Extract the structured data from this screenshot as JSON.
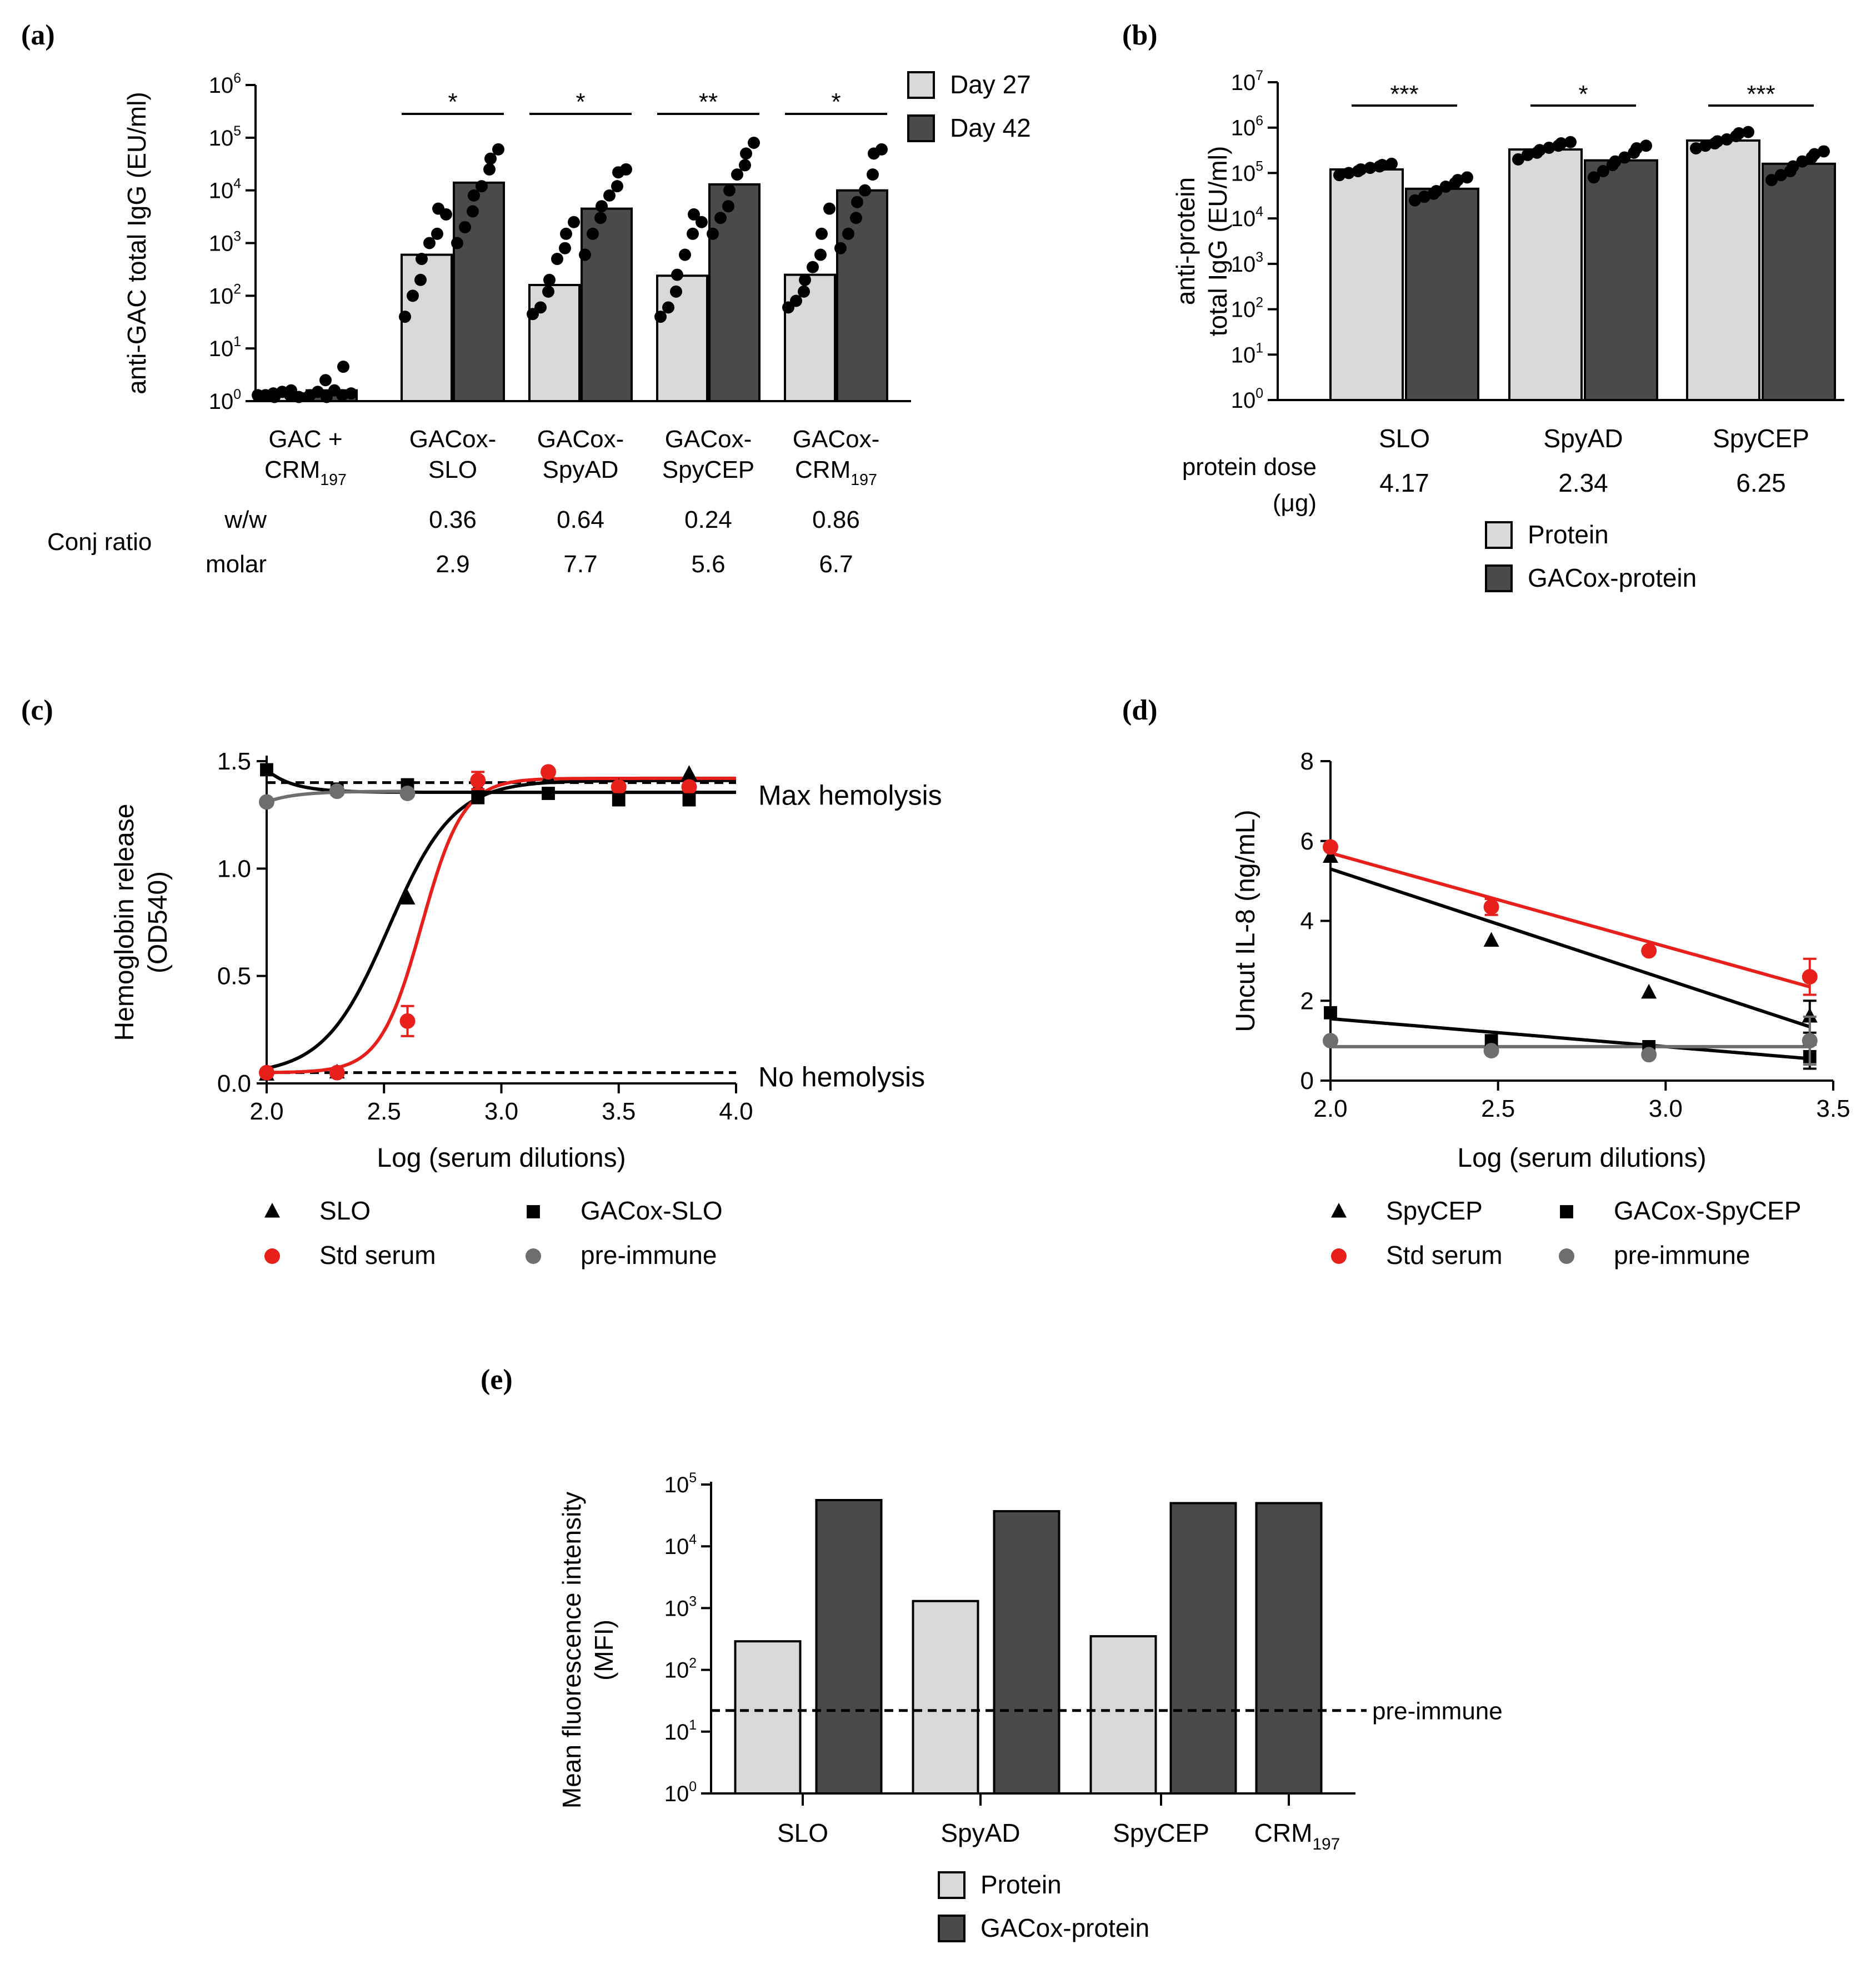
{
  "colors": {
    "light_bar": "#d9d9d9",
    "dark_bar": "#4a4a4a",
    "point": "#000000",
    "red": "#e8201c",
    "gray_series": "#6e6e6e",
    "axis": "#000000"
  },
  "chart_data": [
    {
      "panel": "(a)",
      "type": "bar",
      "title": "",
      "ylabel": "anti-GAC total IgG (EU/ml)",
      "yscale": "log",
      "ylim": [
        1,
        1000000
      ],
      "ytick_values": [
        1,
        10,
        100,
        1000,
        10000,
        100000,
        1000000
      ],
      "ytick_labels": [
        {
          "base": "10",
          "exp": "0"
        },
        {
          "base": "10",
          "exp": "1"
        },
        {
          "base": "10",
          "exp": "2"
        },
        {
          "base": "10",
          "exp": "3"
        },
        {
          "base": "10",
          "exp": "4"
        },
        {
          "base": "10",
          "exp": "5"
        },
        {
          "base": "10",
          "exp": "6"
        }
      ],
      "categories": [
        {
          "line1": "GAC +",
          "line2": "CRM",
          "sub": "197"
        },
        {
          "line1": "GACox-",
          "line2": "SLO",
          "sub": ""
        },
        {
          "line1": "GACox-",
          "line2": "SpyAD",
          "sub": ""
        },
        {
          "line1": "GACox-",
          "line2": "SpyCEP",
          "sub": ""
        },
        {
          "line1": "GACox-",
          "line2": "CRM",
          "sub": "197"
        }
      ],
      "series": [
        {
          "name": "Day 27",
          "color_key": "light_bar",
          "values": [
            1.4,
            600,
            160,
            240,
            250
          ],
          "points": [
            [
              1.3,
              1.3,
              1.4,
              1.2,
              1.5,
              1.3,
              1.6,
              1.2
            ],
            [
              40,
              100,
              200,
              500,
              1000,
              1500,
              4500,
              3500
            ],
            [
              45,
              60,
              120,
              200,
              500,
              800,
              1500,
              2500
            ],
            [
              40,
              60,
              120,
              250,
              600,
              1500,
              3500,
              2500
            ],
            [
              60,
              80,
              120,
              200,
              350,
              600,
              1500,
              4500
            ]
          ]
        },
        {
          "name": "Day 42",
          "color_key": "dark_bar",
          "values": [
            1.6,
            14000,
            4500,
            13000,
            10000
          ],
          "points": [
            [
              1.3,
              1.5,
              2.5,
              1.2,
              1.6,
              1.3,
              4.5,
              1.4
            ],
            [
              1000,
              2000,
              4000,
              8000,
              12000,
              25000,
              40000,
              60000
            ],
            [
              600,
              1500,
              3000,
              5000,
              8000,
              12000,
              22000,
              25000
            ],
            [
              1500,
              3000,
              5000,
              10000,
              20000,
              30000,
              50000,
              80000
            ],
            [
              800,
              1500,
              3000,
              6000,
              10000,
              20000,
              50000,
              60000
            ]
          ]
        }
      ],
      "significance": [
        {
          "group": 1,
          "label": "*"
        },
        {
          "group": 2,
          "label": "*"
        },
        {
          "group": 3,
          "label": "**"
        },
        {
          "group": 4,
          "label": "*"
        }
      ],
      "legend": {
        "placement": "top-right",
        "entries": [
          "Day 27",
          "Day 42"
        ]
      },
      "conj_ratio": {
        "label": "Conj ratio",
        "rows": [
          {
            "label": "w/w",
            "values": [
              "",
              "0.36",
              "0.64",
              "0.24",
              "0.86"
            ]
          },
          {
            "label": "molar",
            "values": [
              "",
              "2.9",
              "7.7",
              "5.6",
              "6.7"
            ]
          }
        ]
      }
    },
    {
      "panel": "(b)",
      "type": "bar",
      "title": "",
      "ylabel_lines": [
        "anti-protein",
        "total IgG (EU/ml)"
      ],
      "yscale": "log",
      "ylim": [
        1,
        10000000
      ],
      "ytick_values": [
        1,
        10,
        100,
        1000,
        10000,
        100000,
        1000000,
        10000000
      ],
      "ytick_labels": [
        {
          "base": "10",
          "exp": "0"
        },
        {
          "base": "10",
          "exp": "1"
        },
        {
          "base": "10",
          "exp": "2"
        },
        {
          "base": "10",
          "exp": "3"
        },
        {
          "base": "10",
          "exp": "4"
        },
        {
          "base": "10",
          "exp": "5"
        },
        {
          "base": "10",
          "exp": "6"
        },
        {
          "base": "10",
          "exp": "7"
        }
      ],
      "categories": [
        "SLO",
        "SpyAD",
        "SpyCEP"
      ],
      "series": [
        {
          "name": "Protein",
          "color_key": "light_bar",
          "values": [
            120000,
            330000,
            520000
          ],
          "points": [
            [
              90000,
              100000,
              110000,
              120000,
              130000,
              140000,
              150000,
              160000
            ],
            [
              200000,
              250000,
              280000,
              320000,
              360000,
              400000,
              450000,
              480000
            ],
            [
              350000,
              400000,
              450000,
              500000,
              550000,
              650000,
              750000,
              800000
            ]
          ]
        },
        {
          "name": "GACox-protein",
          "color_key": "dark_bar",
          "values": [
            45000,
            190000,
            160000
          ],
          "points": [
            [
              25000,
              30000,
              35000,
              40000,
              50000,
              60000,
              70000,
              80000
            ],
            [
              80000,
              110000,
              150000,
              180000,
              220000,
              280000,
              350000,
              400000
            ],
            [
              70000,
              90000,
              110000,
              140000,
              180000,
              220000,
              260000,
              300000
            ]
          ]
        }
      ],
      "significance": [
        {
          "group": 0,
          "label": "***"
        },
        {
          "group": 1,
          "label": "*"
        },
        {
          "group": 2,
          "label": "***"
        }
      ],
      "dose_label": [
        "protein dose",
        "(μg)"
      ],
      "dose_values": [
        "4.17",
        "2.34",
        "6.25"
      ],
      "legend": {
        "placement": "bottom",
        "entries": [
          "Protein",
          "GACox-protein"
        ]
      }
    },
    {
      "panel": "(c)",
      "type": "line",
      "title": "",
      "xlabel": "Log (serum dilutions)",
      "ylabel_lines": [
        "Hemoglobin release",
        "(OD540)"
      ],
      "xlim": [
        2.0,
        4.0
      ],
      "ylim": [
        0.0,
        1.5
      ],
      "xticks": [
        2.0,
        2.5,
        3.0,
        3.5,
        4.0
      ],
      "xtick_labels": [
        "2.0",
        "2.5",
        "3.0",
        "3.5",
        "4.0"
      ],
      "yticks": [
        0.0,
        0.5,
        1.0,
        1.5
      ],
      "ytick_labels": [
        "0.0",
        "0.5",
        "1.0",
        "1.5"
      ],
      "reference_lines": [
        {
          "y": 1.4,
          "label": "Max hemolysis"
        },
        {
          "y": 0.05,
          "label": "No hemolysis"
        }
      ],
      "series": [
        {
          "name": "SLO",
          "marker": "triangle",
          "color_key": "point",
          "x": [
            2.0,
            2.3,
            2.6,
            2.9,
            3.2,
            3.5,
            3.8
          ],
          "y": [
            0.04,
            0.05,
            0.86,
            1.38,
            1.42,
            1.38,
            1.44
          ],
          "fit": {
            "bottom": 0.04,
            "top": 1.41,
            "ec50": 2.52,
            "slope": 9
          }
        },
        {
          "name": "Std serum",
          "marker": "circle",
          "color_key": "red",
          "x": [
            2.0,
            2.3,
            2.6,
            2.9,
            3.2,
            3.5,
            3.8
          ],
          "y": [
            0.05,
            0.05,
            0.29,
            1.41,
            1.45,
            1.38,
            1.38
          ],
          "err": [
            0,
            0,
            0.07,
            0.04,
            0,
            0,
            0
          ],
          "fit": {
            "bottom": 0.05,
            "top": 1.42,
            "ec50": 2.66,
            "slope": 14
          }
        },
        {
          "name": "GACox-SLO",
          "marker": "square",
          "color_key": "point",
          "x": [
            2.0,
            2.3,
            2.6,
            2.9,
            3.2,
            3.5,
            3.8
          ],
          "y": [
            1.46,
            1.37,
            1.39,
            1.33,
            1.35,
            1.32,
            1.32
          ],
          "fit": {
            "type": "decay",
            "start": 1.46,
            "end": 1.355,
            "rate": 9
          }
        },
        {
          "name": "pre-immune",
          "marker": "circle",
          "color_key": "gray_series",
          "x": [
            2.0,
            2.3,
            2.6
          ],
          "y": [
            1.31,
            1.36,
            1.35
          ],
          "fit": {
            "type": "rise",
            "start": 1.31,
            "end": 1.36,
            "x_end": 2.6
          }
        }
      ],
      "legend": {
        "placement": "bottom",
        "entries": [
          "SLO",
          "GACox-SLO",
          "Std serum",
          "pre-immune"
        ]
      }
    },
    {
      "panel": "(d)",
      "type": "line",
      "title": "",
      "xlabel": "Log (serum dilutions)",
      "ylabel": "Uncut IL-8 (ng/mL)",
      "xlim": [
        2.0,
        3.5
      ],
      "ylim": [
        0,
        8
      ],
      "xticks": [
        2.0,
        2.5,
        3.0,
        3.5
      ],
      "xtick_labels": [
        "2.0",
        "2.5",
        "3.0",
        "3.5"
      ],
      "yticks": [
        0,
        2,
        4,
        6,
        8
      ],
      "ytick_labels": [
        "0",
        "2",
        "4",
        "6",
        "8"
      ],
      "series": [
        {
          "name": "SpyCEP",
          "marker": "triangle",
          "color_key": "point",
          "x": [
            2.0,
            2.48,
            2.95,
            3.43
          ],
          "y": [
            5.6,
            3.5,
            2.2,
            1.6
          ],
          "err": [
            0,
            0,
            0,
            0.4
          ],
          "line": [
            [
              2.0,
              5.3
            ],
            [
              3.43,
              1.35
            ]
          ]
        },
        {
          "name": "Std serum",
          "marker": "circle",
          "color_key": "red",
          "x": [
            2.0,
            2.48,
            2.95,
            3.43
          ],
          "y": [
            5.85,
            4.35,
            3.25,
            2.6
          ],
          "err": [
            0,
            0.2,
            0,
            0.45
          ],
          "line": [
            [
              2.0,
              5.7
            ],
            [
              3.43,
              2.35
            ]
          ]
        },
        {
          "name": "GACox-SpyCEP",
          "marker": "square",
          "color_key": "point",
          "x": [
            2.0,
            2.48,
            2.95,
            3.43
          ],
          "y": [
            1.7,
            1.0,
            0.85,
            0.6
          ],
          "err": [
            0,
            0,
            0,
            0.3
          ],
          "line": [
            [
              2.0,
              1.55
            ],
            [
              3.43,
              0.55
            ]
          ]
        },
        {
          "name": "pre-immune",
          "marker": "circle",
          "color_key": "gray_series",
          "x": [
            2.0,
            2.48,
            2.95,
            3.43
          ],
          "y": [
            1.0,
            0.75,
            0.65,
            1.0
          ],
          "err": [
            0,
            0,
            0,
            0.6
          ],
          "line": [
            [
              2.0,
              0.85
            ],
            [
              3.43,
              0.85
            ]
          ]
        }
      ],
      "legend": {
        "placement": "bottom",
        "entries": [
          "SpyCEP",
          "GACox-SpyCEP",
          "Std serum",
          "pre-immune"
        ]
      }
    },
    {
      "panel": "(e)",
      "type": "bar",
      "title": "",
      "ylabel_lines": [
        "Mean fluorescence intensity",
        "(MFI)"
      ],
      "yscale": "log",
      "ylim": [
        1,
        100000
      ],
      "ytick_values": [
        1,
        10,
        100,
        1000,
        10000,
        100000
      ],
      "ytick_labels": [
        {
          "base": "10",
          "exp": "0"
        },
        {
          "base": "10",
          "exp": "1"
        },
        {
          "base": "10",
          "exp": "2"
        },
        {
          "base": "10",
          "exp": "3"
        },
        {
          "base": "10",
          "exp": "4"
        },
        {
          "base": "10",
          "exp": "5"
        }
      ],
      "categories": [
        {
          "label": "SLO",
          "sub": ""
        },
        {
          "label": "SpyAD",
          "sub": ""
        },
        {
          "label": "SpyCEP",
          "sub": ""
        },
        {
          "label": "CRM",
          "sub": "197"
        }
      ],
      "series": [
        {
          "name": "Protein",
          "color_key": "light_bar",
          "values": [
            290,
            1300,
            350,
            null
          ]
        },
        {
          "name": "GACox-protein",
          "color_key": "dark_bar",
          "values": [
            56000,
            37000,
            50000,
            50000
          ]
        }
      ],
      "reference_line": {
        "y": 22,
        "label": "pre-immune"
      },
      "legend": {
        "placement": "bottom",
        "entries": [
          "Protein",
          "GACox-protein"
        ]
      }
    }
  ]
}
